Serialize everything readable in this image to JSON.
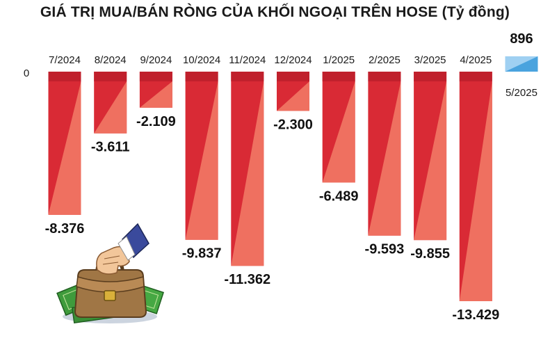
{
  "chart_data": {
    "type": "bar",
    "title": "GIÁ TRỊ MUA/BÁN RÒNG CỦA KHỐI NGOẠI TRÊN HOSE (Tỷ đồng)",
    "categories": [
      "7/2024",
      "8/2024",
      "9/2024",
      "10/2024",
      "11/2024",
      "12/2024",
      "1/2025",
      "2/2025",
      "3/2025",
      "4/2025",
      "5/2025"
    ],
    "values": [
      -8376,
      -3611,
      -2109,
      -9837,
      -11362,
      -2300,
      -6489,
      -9593,
      -9855,
      -13429,
      896
    ],
    "value_labels": [
      "-8.376",
      "-3.611",
      "-2.109",
      "-9.837",
      "-11.362",
      "-2.300",
      "-6.489",
      "-9.593",
      "-9.855",
      "-13.429",
      "896"
    ],
    "zero_label": "0",
    "colors": {
      "negative_dark": "#d92a35",
      "negative_light": "#ef7060",
      "negative_top": "#c0202c",
      "positive": "#4aa3de",
      "positive_light": "#9fd0f2"
    },
    "decoration": "briefcase-money-icon"
  }
}
